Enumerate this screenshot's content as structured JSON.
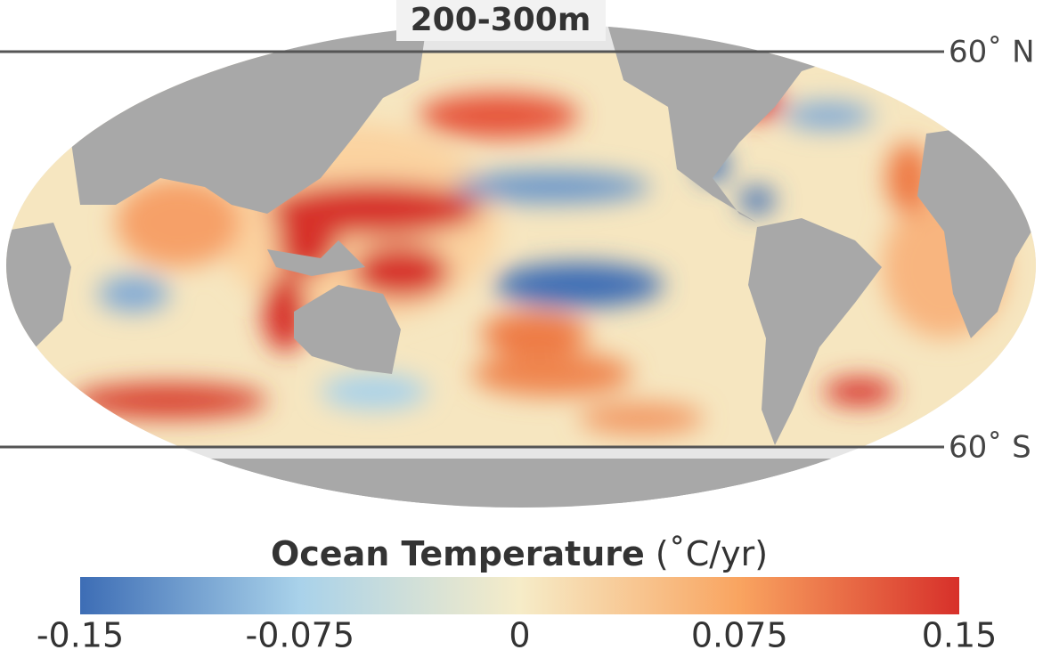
{
  "title": "200-300m",
  "latitude_labels": [
    "60˚ N",
    "60˚ S"
  ],
  "legend": {
    "title": "Ocean Temperature",
    "unit": "(˚C/yr)",
    "lim": [
      -0.15,
      0.15
    ],
    "ticks": [
      -0.15,
      -0.075,
      0,
      0.075,
      0.15
    ],
    "colors": [
      "#3d6db5",
      "#a9d2ea",
      "#f6ecc8",
      "#f9a460",
      "#d7302a"
    ]
  }
}
